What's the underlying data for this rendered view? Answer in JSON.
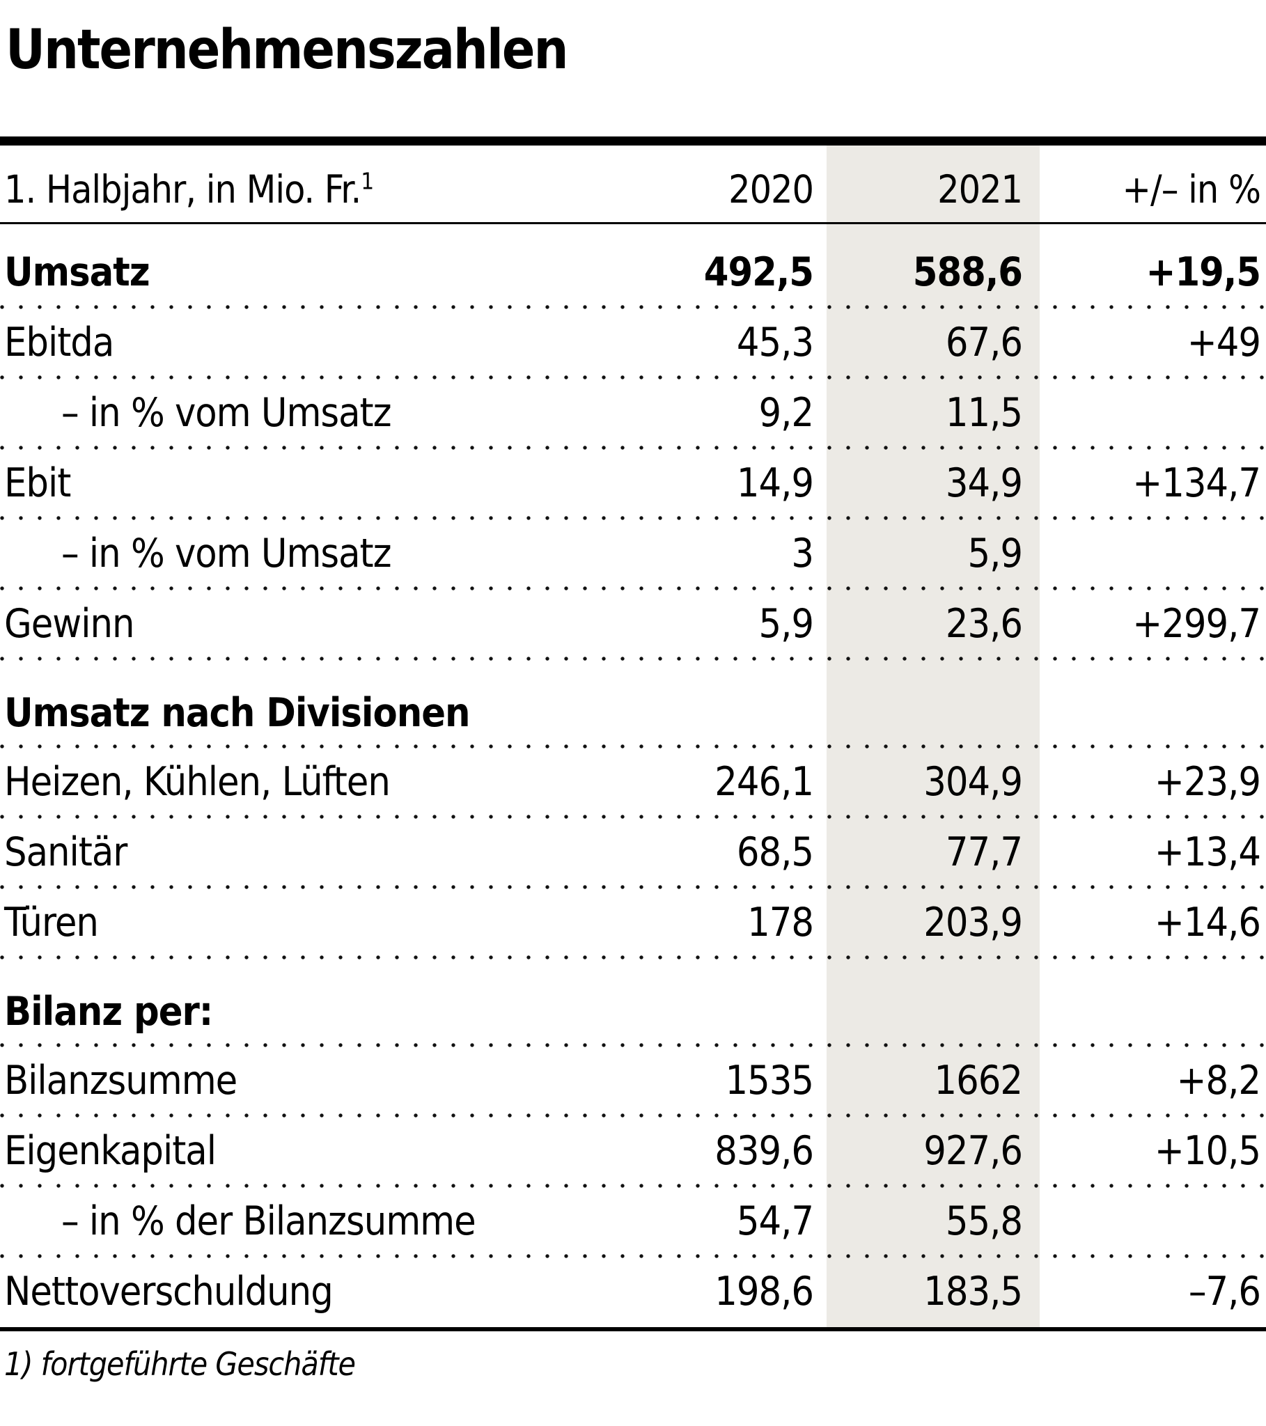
{
  "title": "Unternehmenszahlen",
  "table": {
    "header": {
      "label": "1. Halbjahr, in Mio. Fr.",
      "footnote_marker": "1",
      "col2020": "2020",
      "col2021": "2021",
      "colChange": "+/– in %"
    },
    "rows": [
      {
        "type": "data",
        "bold": true,
        "label": "Umsatz",
        "v2020": "492,5",
        "v2021": "588,6",
        "change": "+19,5"
      },
      {
        "type": "data",
        "label": "Ebitda",
        "v2020": "45,3",
        "v2021": "67,6",
        "change": "+49"
      },
      {
        "type": "data",
        "indent": true,
        "label": "– in % vom Umsatz",
        "v2020": "9,2",
        "v2021": "11,5",
        "change": ""
      },
      {
        "type": "data",
        "label": "Ebit",
        "v2020": "14,9",
        "v2021": "34,9",
        "change": "+134,7"
      },
      {
        "type": "data",
        "indent": true,
        "label": "– in % vom Umsatz",
        "v2020": "3",
        "v2021": "5,9",
        "change": ""
      },
      {
        "type": "data",
        "label": "Gewinn",
        "v2020": "5,9",
        "v2021": "23,6",
        "change": "+299,7"
      },
      {
        "type": "section",
        "label": "Umsatz nach Divisionen"
      },
      {
        "type": "data",
        "label": "Heizen, Kühlen, Lüften",
        "v2020": "246,1",
        "v2021": "304,9",
        "change": "+23,9"
      },
      {
        "type": "data",
        "label": "Sanitär",
        "v2020": "68,5",
        "v2021": "77,7",
        "change": "+13,4"
      },
      {
        "type": "data",
        "label": "Türen",
        "v2020": "178",
        "v2021": "203,9",
        "change": "+14,6"
      },
      {
        "type": "section",
        "label": "Bilanz per:"
      },
      {
        "type": "data",
        "label": "Bilanzsumme",
        "v2020": "1535",
        "v2021": "1662",
        "change": "+8,2"
      },
      {
        "type": "data",
        "label": "Eigenkapital",
        "v2020": "839,6",
        "v2021": "927,6",
        "change": "+10,5"
      },
      {
        "type": "data",
        "indent": true,
        "label": "– in % der Bilanzsumme",
        "v2020": "54,7",
        "v2021": "55,8",
        "change": ""
      },
      {
        "type": "data",
        "label": "Nettoverschuldung",
        "v2020": "198,6",
        "v2021": "183,5",
        "change": "–7,6"
      }
    ]
  },
  "footnote": "1) fortgeführte Geschäfte",
  "colors": {
    "highlight_band": "#ECEAE5",
    "text": "#000000",
    "rule": "#000000"
  },
  "chart_data": {
    "type": "table",
    "title": "Unternehmenszahlen",
    "subtitle": "1. Halbjahr, in Mio. Fr. (1) fortgeführte Geschäfte)",
    "columns": [
      "2020",
      "2021",
      "+/– in %"
    ],
    "highlighted_column": "2021",
    "sections": [
      {
        "name": "",
        "rows": [
          {
            "label": "Umsatz",
            "y2020": 492.5,
            "y2021": 588.6,
            "change_pct": 19.5
          },
          {
            "label": "Ebitda",
            "y2020": 45.3,
            "y2021": 67.6,
            "change_pct": 49
          },
          {
            "label": "– in % vom Umsatz",
            "y2020": 9.2,
            "y2021": 11.5,
            "change_pct": null
          },
          {
            "label": "Ebit",
            "y2020": 14.9,
            "y2021": 34.9,
            "change_pct": 134.7
          },
          {
            "label": "– in % vom Umsatz",
            "y2020": 3,
            "y2021": 5.9,
            "change_pct": null
          },
          {
            "label": "Gewinn",
            "y2020": 5.9,
            "y2021": 23.6,
            "change_pct": 299.7
          }
        ]
      },
      {
        "name": "Umsatz nach Divisionen",
        "rows": [
          {
            "label": "Heizen, Kühlen, Lüften",
            "y2020": 246.1,
            "y2021": 304.9,
            "change_pct": 23.9
          },
          {
            "label": "Sanitär",
            "y2020": 68.5,
            "y2021": 77.7,
            "change_pct": 13.4
          },
          {
            "label": "Türen",
            "y2020": 178,
            "y2021": 203.9,
            "change_pct": 14.6
          }
        ]
      },
      {
        "name": "Bilanz per:",
        "rows": [
          {
            "label": "Bilanzsumme",
            "y2020": 1535,
            "y2021": 1662,
            "change_pct": 8.2
          },
          {
            "label": "Eigenkapital",
            "y2020": 839.6,
            "y2021": 927.6,
            "change_pct": 10.5
          },
          {
            "label": "– in % der Bilanzsumme",
            "y2020": 54.7,
            "y2021": 55.8,
            "change_pct": null
          },
          {
            "label": "Nettoverschuldung",
            "y2020": 198.6,
            "y2021": 183.5,
            "change_pct": -7.6
          }
        ]
      }
    ]
  }
}
